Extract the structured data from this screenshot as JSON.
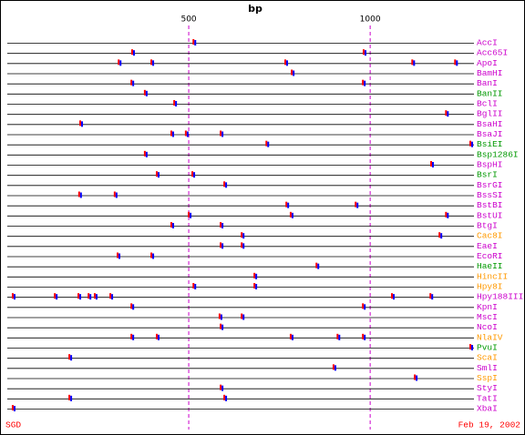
{
  "chart_data": {
    "type": "restriction-map",
    "title": "bp",
    "xlim": [
      0,
      1286
    ],
    "xticks": [
      500,
      1000
    ],
    "footer_left": "SGD",
    "footer_right": "Feb 19, 2002",
    "enzymes": [
      {
        "name": "AccI",
        "color": "#cc00cc",
        "sites": [
          513
        ]
      },
      {
        "name": "Acc65I",
        "color": "#cc00cc",
        "sites": [
          344,
          982
        ]
      },
      {
        "name": "ApoI",
        "color": "#cc00cc",
        "sites": [
          307,
          397,
          766,
          1116,
          1234
        ]
      },
      {
        "name": "BamHI",
        "color": "#cc00cc",
        "sites": [
          784
        ]
      },
      {
        "name": "BanI",
        "color": "#cc00cc",
        "sites": [
          342,
          980
        ]
      },
      {
        "name": "BanII",
        "color": "#009900",
        "sites": [
          379
        ]
      },
      {
        "name": "BclI",
        "color": "#cc00cc",
        "sites": [
          460
        ]
      },
      {
        "name": "BglII",
        "color": "#cc00cc",
        "sites": [
          1209
        ]
      },
      {
        "name": "BsaHI",
        "color": "#cc00cc",
        "sites": [
          201
        ]
      },
      {
        "name": "BsaJI",
        "color": "#cc00cc",
        "sites": [
          452,
          492,
          588
        ]
      },
      {
        "name": "BsiEI",
        "color": "#009900",
        "sites": [
          714,
          1276
        ]
      },
      {
        "name": "Bsp1286I",
        "color": "#009900",
        "sites": [
          379
        ]
      },
      {
        "name": "BspHI",
        "color": "#cc00cc",
        "sites": [
          1168
        ]
      },
      {
        "name": "BsrI",
        "color": "#009900",
        "sites": [
          412,
          510
        ]
      },
      {
        "name": "BsrGI",
        "color": "#cc00cc",
        "sites": [
          598
        ]
      },
      {
        "name": "BssSI",
        "color": "#cc00cc",
        "sites": [
          198,
          296
        ]
      },
      {
        "name": "BstBI",
        "color": "#cc00cc",
        "sites": [
          769,
          960
        ]
      },
      {
        "name": "BstUI",
        "color": "#cc00cc",
        "sites": [
          500,
          781,
          1209
        ]
      },
      {
        "name": "BtgI",
        "color": "#cc00cc",
        "sites": [
          452,
          588
        ]
      },
      {
        "name": "Cac8I",
        "color": "#ff9900",
        "sites": [
          646,
          1191
        ]
      },
      {
        "name": "EaeI",
        "color": "#cc00cc",
        "sites": [
          588,
          646
        ]
      },
      {
        "name": "EcoRI",
        "color": "#cc00cc",
        "sites": [
          304,
          397
        ]
      },
      {
        "name": "HaeII",
        "color": "#009900",
        "sites": [
          852
        ]
      },
      {
        "name": "HincII",
        "color": "#ff9900",
        "sites": [
          681
        ]
      },
      {
        "name": "Hpy8I",
        "color": "#ff9900",
        "sites": [
          513,
          681
        ]
      },
      {
        "name": "Hpy188III",
        "color": "#cc00cc",
        "sites": [
          15,
          131,
          196,
          224,
          241,
          284,
          1060,
          1166
        ]
      },
      {
        "name": "KpnI",
        "color": "#cc00cc",
        "sites": [
          342,
          980
        ]
      },
      {
        "name": "MscI",
        "color": "#cc00cc",
        "sites": [
          585,
          646
        ]
      },
      {
        "name": "NcoI",
        "color": "#cc00cc",
        "sites": [
          588
        ]
      },
      {
        "name": "NlaIV",
        "color": "#ff9900",
        "sites": [
          342,
          412,
          781,
          910,
          980
        ]
      },
      {
        "name": "PvuI",
        "color": "#009900",
        "sites": [
          1276
        ]
      },
      {
        "name": "ScaI",
        "color": "#ff9900",
        "sites": [
          171
        ]
      },
      {
        "name": "SmlI",
        "color": "#cc00cc",
        "sites": [
          899
        ]
      },
      {
        "name": "SspI",
        "color": "#ff9900",
        "sites": [
          1123
        ]
      },
      {
        "name": "StyI",
        "color": "#cc00cc",
        "sites": [
          588
        ]
      },
      {
        "name": "TatI",
        "color": "#cc00cc",
        "sites": [
          171,
          598
        ]
      },
      {
        "name": "XbaI",
        "color": "#cc00cc",
        "sites": [
          15
        ]
      }
    ]
  }
}
